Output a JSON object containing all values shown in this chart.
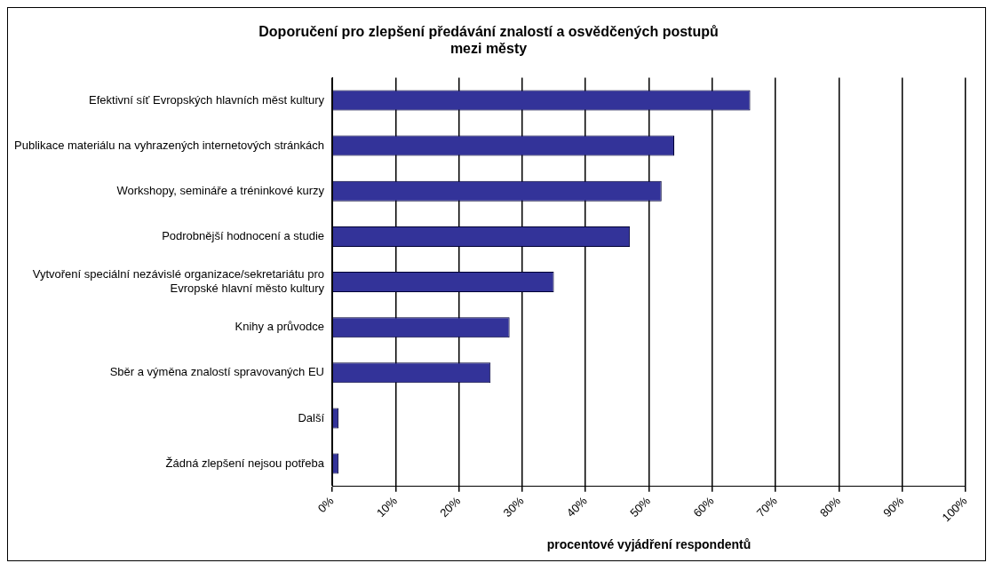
{
  "chart_data": {
    "type": "bar",
    "orientation": "horizontal",
    "title": "Doporučení pro zlepšení předávání znalostí a osvědčených postupů\nmezi městy",
    "xlabel": "procentové vyjádření respondentů",
    "categories": [
      "Efektivní síť Evropských hlavních měst kultury",
      "Publikace materiálu na vyhrazených internetových stránkách",
      "Workshopy, semináře a tréninkové kurzy",
      "Podrobnější hodnocení a studie",
      "Vytvoření speciální nezávislé organizace/sekretariátu pro Evropské hlavní město kultury",
      "Knihy a průvodce",
      "Sběr a výměna znalostí spravovaných EU",
      "Další",
      "Žádná zlepšení nejsou potřeba"
    ],
    "values": [
      66,
      54,
      52,
      47,
      35,
      28,
      25,
      1,
      1
    ],
    "color": "#333399",
    "xlim": [
      0,
      100
    ],
    "xticks": [
      {
        "value": 0,
        "label": "0%"
      },
      {
        "value": 10,
        "label": "10%"
      },
      {
        "value": 20,
        "label": "20%"
      },
      {
        "value": 30,
        "label": "30%"
      },
      {
        "value": 40,
        "label": "40%"
      },
      {
        "value": 50,
        "label": "50%"
      },
      {
        "value": 60,
        "label": "60%"
      },
      {
        "value": 70,
        "label": "70%"
      },
      {
        "value": 80,
        "label": "80%"
      },
      {
        "value": 90,
        "label": "90%"
      },
      {
        "value": 100,
        "label": "100%"
      }
    ],
    "grid": "x",
    "legend": false
  }
}
